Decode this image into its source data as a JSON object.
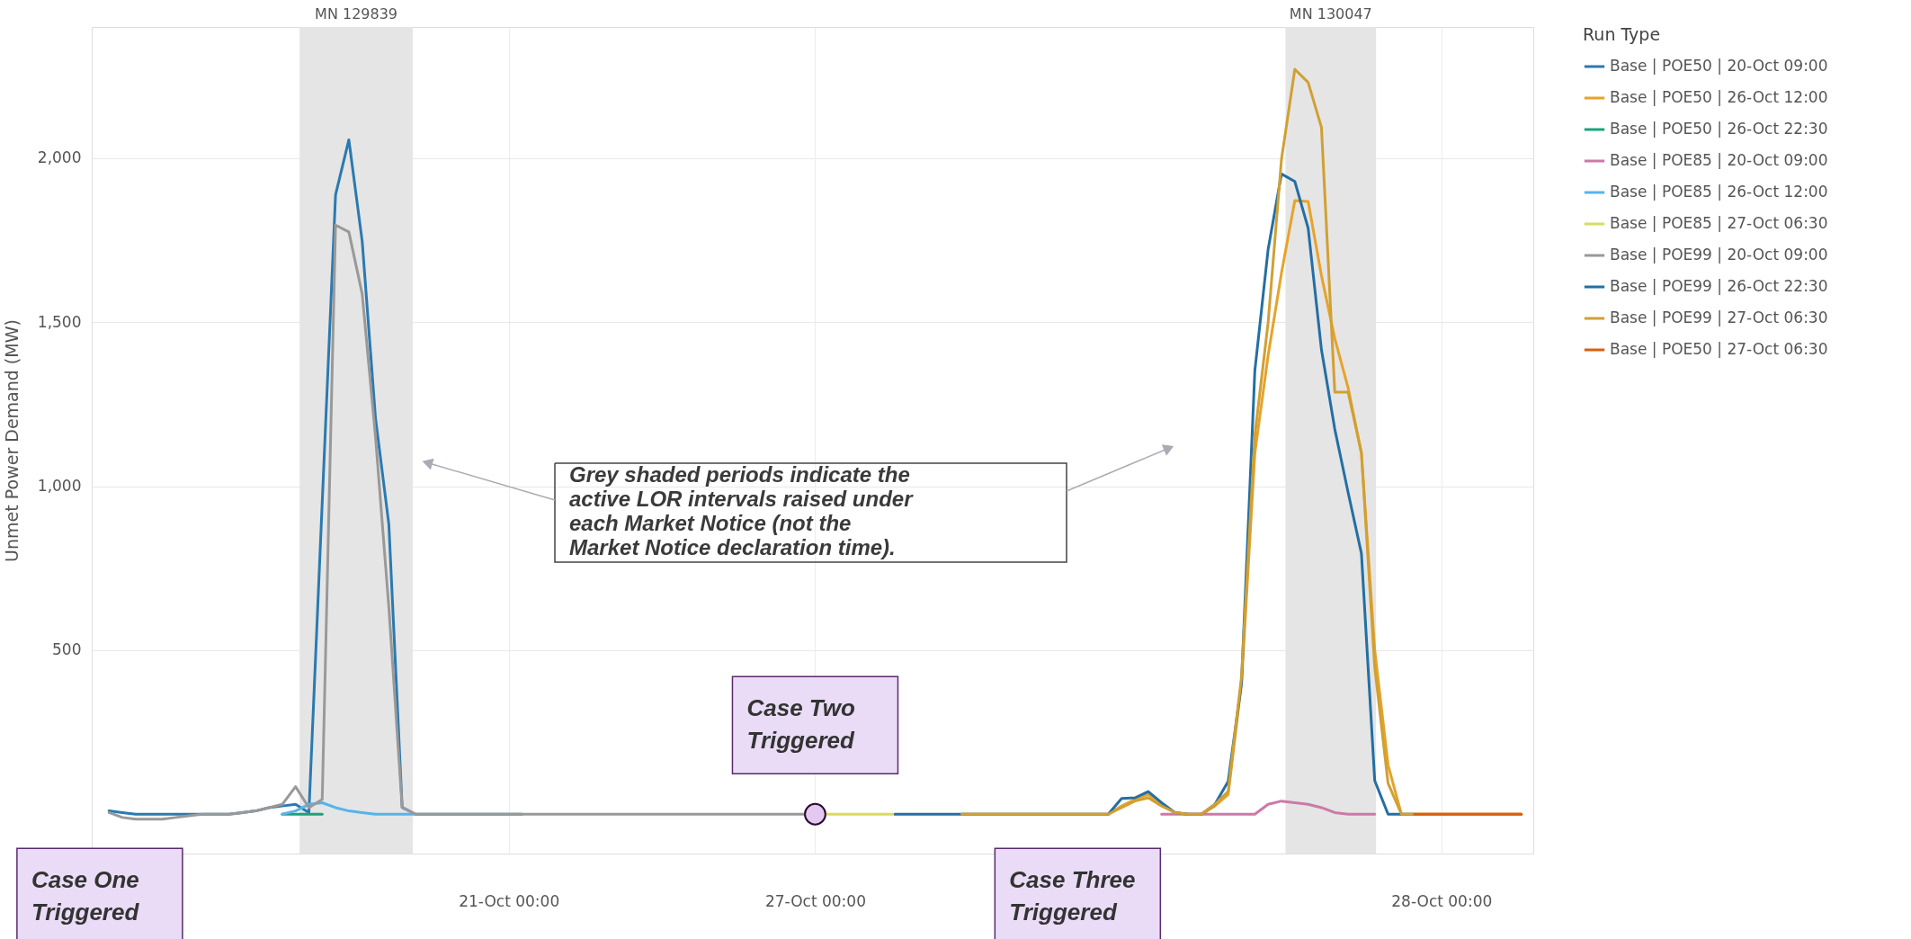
{
  "chart_data": {
    "type": "line",
    "ylabel": "Unmet Power Demand (MW)",
    "legend_title": "Run Type",
    "categories": [
      null,
      null,
      null,
      null,
      null,
      null,
      null,
      null,
      null,
      null,
      null,
      null,
      null,
      null,
      null,
      null,
      null,
      null,
      null,
      null,
      null,
      null,
      null,
      null,
      null,
      null,
      null,
      null,
      null,
      null,
      null,
      "21-Oct 00:00",
      null,
      null,
      null,
      null,
      null,
      null,
      null,
      null,
      null,
      null,
      null,
      null,
      null,
      null,
      null,
      null,
      null,
      null,
      null,
      null,
      null,
      null,
      "27-Oct 00:00",
      null,
      null,
      null,
      null,
      null,
      null,
      null,
      null,
      null,
      null,
      null,
      null,
      null,
      null,
      null,
      null,
      null,
      null,
      null,
      null,
      null,
      null,
      null,
      null,
      null,
      null,
      null,
      null,
      null,
      null,
      null,
      null,
      null,
      null,
      null,
      null,
      null,
      null,
      null,
      null,
      null,
      null,
      null,
      null,
      null,
      null,
      "28-Oct 00:00",
      null,
      null,
      null,
      null,
      null,
      null
    ],
    "ylim": [
      -120,
      2400
    ],
    "yticks": [
      500,
      {
        "value": 1000,
        "label": "1,000"
      },
      {
        "value": 1500,
        "label": "1,500"
      },
      {
        "value": 2000,
        "label": "2,000"
      }
    ],
    "grid": true,
    "legend": "right",
    "annotations": [
      "Grey shaded periods indicate the active LOR intervals raised under each Market Notice (not the Market Notice declaration time).",
      "MN 129839",
      "MN 130047",
      "Case One Triggered",
      {
        "text": "Case Two Triggered",
        "x": "27-Oct 00:00",
        "y": 0
      },
      "Case Three Triggered"
    ],
    "series": [
      {
        "name": "Base | POE50 | 20-Oct 09:00",
        "color": "#2a7ab0",
        "values": [
          null,
          10,
          5,
          0,
          0,
          0,
          0,
          0,
          0,
          0,
          0,
          5,
          10,
          20,
          25,
          30,
          5,
          950,
          1888,
          2056,
          1747,
          1207,
          884,
          21,
          0,
          0,
          0,
          0,
          0,
          0,
          0,
          0,
          0,
          null,
          null,
          null,
          null,
          null,
          null,
          null,
          null,
          null,
          null,
          null,
          null,
          null,
          null,
          null,
          null,
          null,
          null,
          null,
          null,
          null,
          null,
          null,
          null,
          null,
          null,
          null,
          null,
          null,
          null,
          null,
          null,
          null,
          null,
          null,
          null,
          null,
          null,
          null,
          null,
          null,
          null,
          null,
          null,
          null,
          null,
          null,
          null,
          null,
          null,
          null,
          null,
          null,
          null,
          null,
          null,
          null,
          null,
          null,
          null,
          null,
          null,
          null,
          null,
          null,
          null,
          null,
          null,
          null,
          null,
          null,
          null,
          null,
          null,
          null
        ]
      },
      {
        "name": "Base | POE50 | 26-Oct 12:00",
        "color": "#e6a32b",
        "values": [
          null,
          null,
          null,
          null,
          null,
          null,
          null,
          null,
          null,
          null,
          null,
          null,
          null,
          null,
          null,
          null,
          null,
          null,
          null,
          null,
          null,
          null,
          null,
          null,
          null,
          null,
          null,
          null,
          null,
          null,
          null,
          null,
          null,
          null,
          null,
          null,
          null,
          null,
          null,
          null,
          null,
          null,
          null,
          null,
          null,
          null,
          null,
          null,
          null,
          null,
          null,
          null,
          null,
          null,
          null,
          null,
          null,
          null,
          null,
          null,
          null,
          null,
          null,
          null,
          null,
          0,
          0,
          0,
          0,
          0,
          0,
          0,
          0,
          null,
          null,
          0,
          0,
          25,
          45,
          60,
          30,
          5,
          0,
          0,
          25,
          60,
          400,
          1100,
          1400,
          1650,
          1871,
          1868,
          1642,
          1450,
          1300,
          1100,
          500,
          150,
          0,
          0,
          0,
          0,
          0,
          0,
          0,
          0,
          0,
          0
        ]
      },
      {
        "name": "Base | POE50 | 26-Oct 22:30",
        "color": "#1aa37a",
        "values": [
          null,
          null,
          null,
          null,
          null,
          null,
          null,
          null,
          null,
          null,
          null,
          null,
          null,
          null,
          0,
          0,
          0,
          0,
          null,
          null,
          null,
          null,
          null,
          null,
          null,
          null,
          null,
          null,
          null,
          null,
          null,
          null,
          null,
          null,
          null,
          null,
          null,
          null,
          null,
          null,
          null,
          null,
          null,
          null,
          null,
          null,
          null,
          null,
          null,
          null,
          null,
          null,
          null,
          null,
          null,
          null,
          null,
          null,
          null,
          null,
          null,
          null,
          null,
          null,
          null,
          null,
          null,
          null,
          null,
          null,
          null,
          null,
          null,
          null,
          null,
          null,
          null,
          null,
          null,
          null,
          null,
          null,
          null,
          null,
          null,
          null,
          null,
          null,
          null,
          null,
          null,
          null,
          null,
          null,
          null,
          null,
          null,
          null,
          null,
          null,
          null,
          null,
          null,
          null,
          null,
          null,
          null,
          null
        ]
      },
      {
        "name": "Base | POE85 | 20-Oct 09:00",
        "color": "#cc79a7",
        "values": [
          null,
          null,
          null,
          null,
          null,
          null,
          null,
          null,
          null,
          null,
          null,
          null,
          null,
          null,
          null,
          null,
          null,
          null,
          null,
          null,
          null,
          null,
          null,
          null,
          null,
          null,
          null,
          null,
          null,
          null,
          null,
          null,
          null,
          null,
          null,
          null,
          null,
          null,
          null,
          null,
          null,
          null,
          null,
          null,
          null,
          null,
          null,
          null,
          null,
          null,
          null,
          null,
          null,
          null,
          null,
          null,
          null,
          null,
          null,
          null,
          null,
          null,
          null,
          null,
          null,
          null,
          null,
          null,
          null,
          null,
          null,
          null,
          null,
          null,
          null,
          null,
          null,
          null,
          null,
          null,
          0,
          0,
          0,
          0,
          0,
          0,
          0,
          0,
          30,
          40,
          35,
          30,
          20,
          5,
          0,
          0,
          0,
          null,
          null,
          null,
          null,
          null,
          null,
          null,
          null,
          null,
          null,
          null
        ]
      },
      {
        "name": "Base | POE85 | 26-Oct 12:00",
        "color": "#56b4e9",
        "values": [
          null,
          null,
          null,
          null,
          null,
          null,
          null,
          null,
          null,
          null,
          null,
          null,
          null,
          null,
          0,
          10,
          30,
          35,
          20,
          10,
          5,
          0,
          0,
          0,
          0,
          null,
          null,
          null,
          null,
          null,
          null,
          null,
          null,
          null,
          null,
          null,
          null,
          null,
          null,
          null,
          null,
          null,
          null,
          null,
          null,
          null,
          null,
          null,
          null,
          null,
          null,
          null,
          null,
          null,
          null,
          null,
          null,
          null,
          null,
          null,
          null,
          null,
          null,
          null,
          null,
          null,
          null,
          null,
          null,
          null,
          null,
          null,
          null,
          null,
          null,
          null,
          null,
          null,
          null,
          null,
          null,
          null,
          null,
          null,
          null,
          null,
          null,
          null,
          null,
          null,
          null,
          null,
          null,
          null,
          null,
          null,
          null,
          null,
          null,
          null,
          null,
          null,
          null,
          null,
          null,
          null,
          null,
          null
        ]
      },
      {
        "name": "Base | POE85 | 27-Oct 06:30",
        "color": "#d9dc5c",
        "values": [
          null,
          null,
          null,
          null,
          null,
          null,
          null,
          null,
          null,
          null,
          null,
          null,
          null,
          null,
          null,
          null,
          null,
          null,
          null,
          null,
          null,
          null,
          null,
          null,
          null,
          null,
          null,
          null,
          null,
          null,
          null,
          null,
          null,
          null,
          null,
          null,
          null,
          null,
          null,
          null,
          null,
          null,
          null,
          null,
          null,
          null,
          null,
          null,
          null,
          null,
          null,
          null,
          null,
          null,
          0,
          0,
          0,
          0,
          0,
          0,
          0,
          null,
          null,
          null,
          null,
          null,
          null,
          null,
          null,
          null,
          null,
          null,
          null,
          null,
          null,
          null,
          null,
          null,
          null,
          null,
          null,
          null,
          null,
          null,
          null,
          null,
          null,
          null,
          null,
          null,
          null,
          null,
          null,
          null,
          null,
          null,
          null,
          null,
          null,
          null,
          null,
          null,
          null,
          null,
          null,
          null,
          null,
          null
        ]
      },
      {
        "name": "Base | POE99 | 20-Oct 09:00",
        "color": "#999999",
        "values": [
          null,
          5,
          -10,
          -15,
          -15,
          -15,
          -10,
          -5,
          0,
          0,
          0,
          5,
          10,
          20,
          30,
          84,
          20,
          45,
          1796,
          1775,
          1586,
          1150,
          632,
          21,
          0,
          0,
          0,
          0,
          0,
          0,
          0,
          0,
          0,
          0,
          0,
          0,
          0,
          0,
          0,
          0,
          0,
          0,
          0,
          0,
          0,
          0,
          0,
          0,
          0,
          0,
          0,
          0,
          0,
          0,
          0,
          null,
          null,
          null,
          null,
          null,
          null,
          null,
          null,
          null,
          null,
          null,
          null,
          null,
          null,
          null,
          null,
          null,
          null,
          null,
          null,
          null,
          null,
          null,
          null,
          null,
          null,
          null,
          null,
          null,
          null,
          null,
          null,
          null,
          null,
          null,
          null,
          null,
          null,
          null,
          null,
          null,
          null,
          null,
          null,
          null,
          null,
          null,
          null,
          null,
          null,
          null,
          null,
          null
        ]
      },
      {
        "name": "Base | POE99 | 26-Oct 22:30",
        "color": "#236fa3",
        "values": [
          null,
          null,
          null,
          null,
          null,
          null,
          null,
          null,
          null,
          null,
          null,
          null,
          null,
          null,
          null,
          null,
          null,
          null,
          null,
          null,
          null,
          null,
          null,
          null,
          null,
          null,
          null,
          null,
          null,
          null,
          null,
          null,
          null,
          null,
          null,
          null,
          null,
          null,
          null,
          null,
          null,
          null,
          null,
          null,
          null,
          null,
          null,
          null,
          null,
          null,
          null,
          null,
          null,
          null,
          null,
          null,
          null,
          null,
          null,
          null,
          0,
          0,
          0,
          0,
          0,
          0,
          0,
          0,
          0,
          0,
          0,
          0,
          0,
          null,
          null,
          0,
          0,
          48,
          50,
          69,
          35,
          5,
          0,
          0,
          30,
          100,
          400,
          1352,
          1723,
          1952,
          1929,
          1787,
          1416,
          1174,
          981,
          795,
          102,
          0,
          0,
          0,
          null,
          null,
          null,
          null,
          null,
          null,
          null,
          null
        ]
      },
      {
        "name": "Base | POE99 | 27-Oct 06:30",
        "color": "#d1a033",
        "values": [
          null,
          null,
          null,
          null,
          null,
          null,
          null,
          null,
          null,
          null,
          null,
          null,
          null,
          null,
          null,
          null,
          null,
          null,
          null,
          null,
          null,
          null,
          null,
          null,
          null,
          null,
          null,
          null,
          null,
          null,
          null,
          null,
          null,
          null,
          null,
          null,
          null,
          null,
          null,
          null,
          null,
          null,
          null,
          null,
          null,
          null,
          null,
          null,
          null,
          null,
          null,
          null,
          null,
          null,
          null,
          null,
          null,
          null,
          null,
          null,
          null,
          null,
          null,
          null,
          null,
          0,
          0,
          0,
          0,
          0,
          0,
          0,
          0,
          null,
          null,
          0,
          0,
          20,
          40,
          50,
          25,
          5,
          0,
          0,
          30,
          70,
          420,
          1155,
          1500,
          1997,
          2271,
          2231,
          2094,
          1287,
          1287,
          1102,
          448,
          94,
          0,
          0,
          0,
          0,
          0,
          0,
          0,
          0,
          0,
          0
        ]
      },
      {
        "name": "Base | POE50 | 27-Oct 06:30",
        "color": "#d95f0e",
        "values": [
          null,
          null,
          null,
          null,
          null,
          null,
          null,
          null,
          null,
          null,
          null,
          null,
          null,
          null,
          null,
          null,
          null,
          null,
          null,
          null,
          null,
          null,
          null,
          null,
          null,
          null,
          null,
          null,
          null,
          null,
          null,
          null,
          null,
          null,
          null,
          null,
          null,
          null,
          null,
          null,
          null,
          null,
          null,
          null,
          null,
          null,
          null,
          null,
          null,
          null,
          null,
          null,
          null,
          null,
          null,
          null,
          null,
          null,
          null,
          null,
          null,
          null,
          null,
          null,
          null,
          null,
          null,
          null,
          null,
          null,
          null,
          null,
          null,
          null,
          null,
          null,
          null,
          null,
          null,
          null,
          null,
          null,
          null,
          null,
          null,
          null,
          null,
          null,
          null,
          null,
          null,
          null,
          null,
          null,
          null,
          null,
          null,
          null,
          null,
          0,
          0,
          0,
          0,
          0,
          0,
          0,
          0,
          0
        ]
      }
    ]
  }
}
